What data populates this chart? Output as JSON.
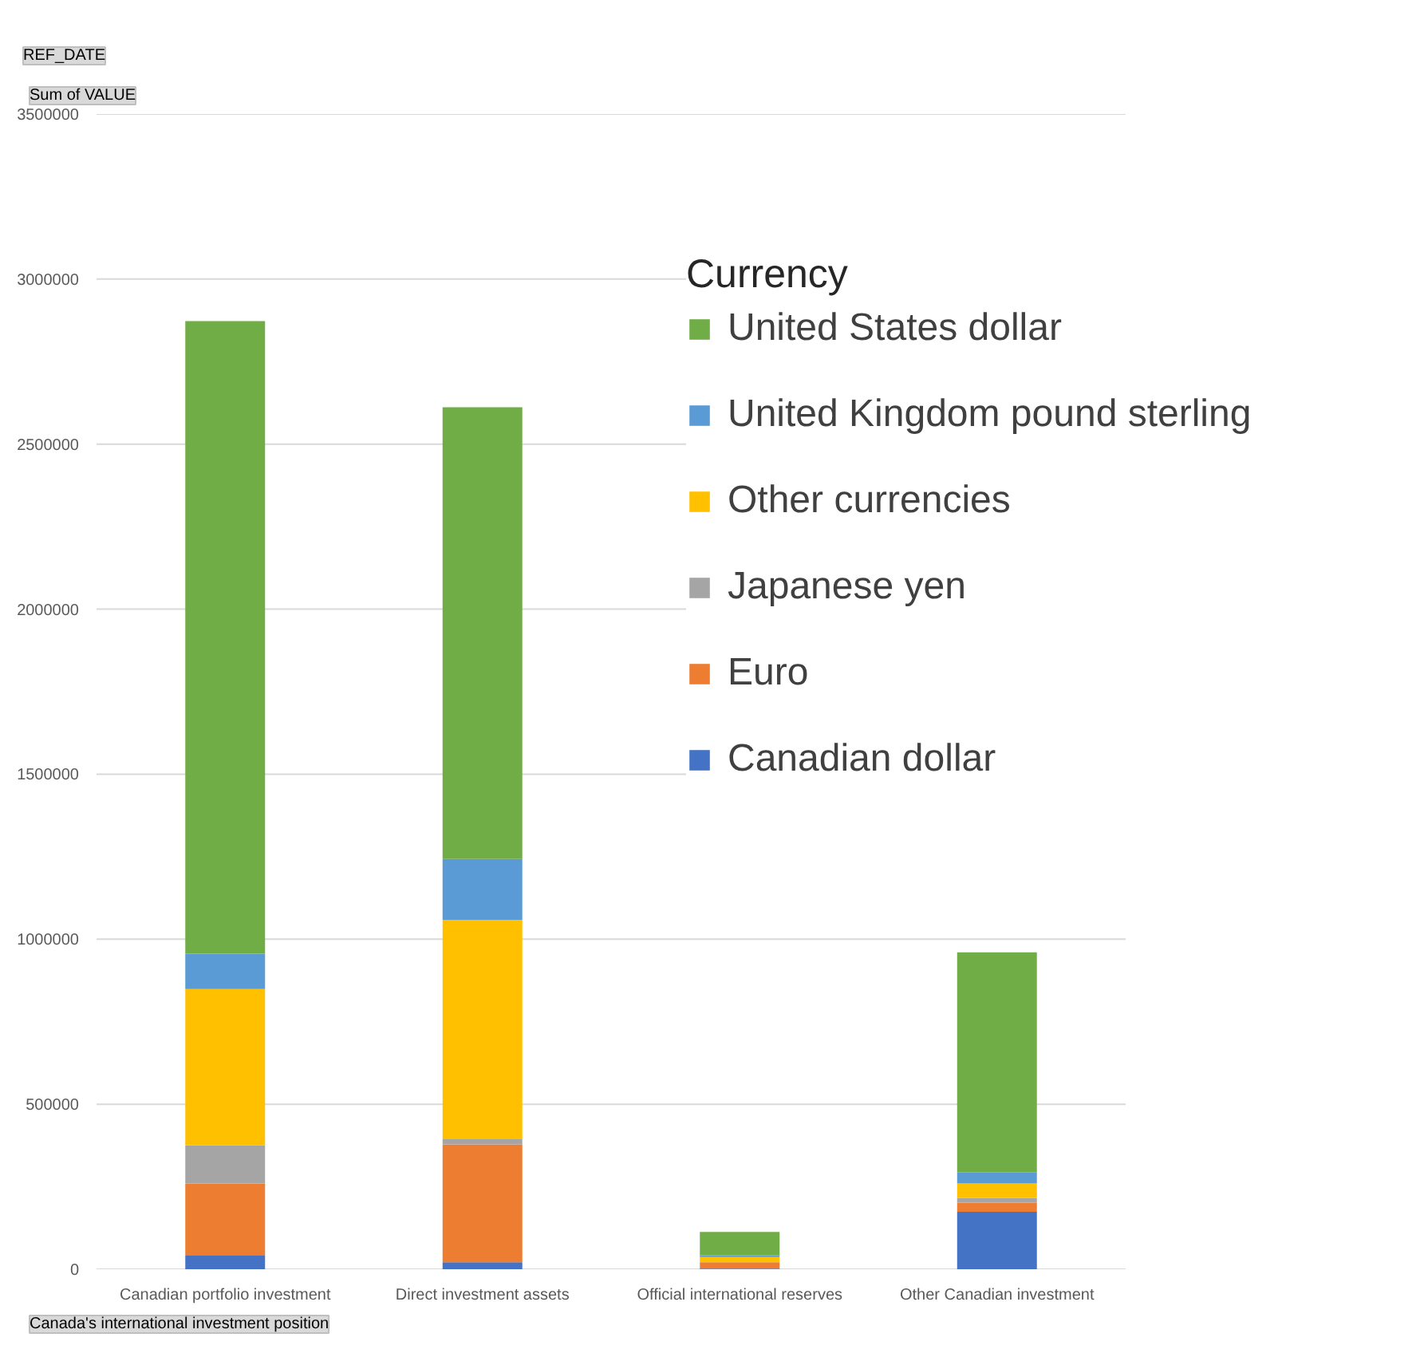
{
  "chart_data": {
    "type": "bar",
    "stacked": true,
    "legend_title": "Currency",
    "legend": "top right",
    "grid": "y",
    "categories": [
      "Canadian portfolio investment",
      "Direct investment assets",
      "Official international reserves",
      "Other Canadian investment"
    ],
    "series": [
      {
        "name": "Canadian dollar",
        "color": "#4472c4",
        "values": [
          43000,
          21000,
          2000,
          174000
        ]
      },
      {
        "name": "Euro",
        "color": "#ed7d31",
        "values": [
          217000,
          357000,
          19000,
          28000
        ]
      },
      {
        "name": "Japanese yen",
        "color": "#a5a5a5",
        "values": [
          116000,
          16000,
          null,
          14000
        ]
      },
      {
        "name": "Other currencies",
        "color": "#ffc000",
        "values": [
          473000,
          664000,
          16000,
          44000
        ]
      },
      {
        "name": "United Kingdom pound sterling",
        "color": "#5b9bd5",
        "values": [
          107000,
          185000,
          5000,
          34000
        ]
      },
      {
        "name": "United States dollar",
        "color": "#70ad47",
        "values": [
          1917000,
          1369000,
          71000,
          666000
        ]
      }
    ],
    "ylim": [
      0,
      3500000
    ],
    "yticks": [
      0,
      500000,
      1000000,
      1500000,
      2000000,
      2500000,
      3000000,
      3500000
    ],
    "annotations": [
      "REF_DATE",
      "Sum of VALUE",
      "Canada's international investment position"
    ]
  }
}
